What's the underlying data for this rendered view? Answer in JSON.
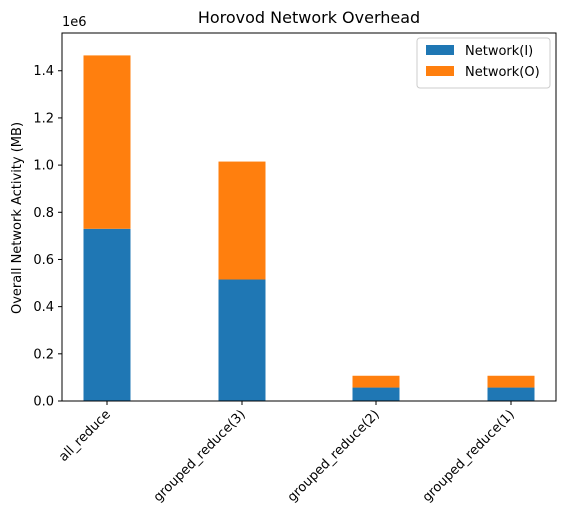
{
  "chart_data": {
    "type": "bar",
    "stacked": true,
    "title": "Horovod Network Overhead",
    "xlabel": "",
    "ylabel": "Overall Network Activity (MB)",
    "y_scale_label": "1e6",
    "categories": [
      "all_reduce",
      "grouped_reduce(3)",
      "grouped_reduce(2)",
      "grouped_reduce(1)"
    ],
    "series": [
      {
        "name": "Network(I)",
        "color": "#1f77b4",
        "values": [
          730000,
          515000,
          57000,
          57000
        ]
      },
      {
        "name": "Network(O)",
        "color": "#ff7f0e",
        "values": [
          735000,
          500000,
          50000,
          50000
        ]
      }
    ],
    "ylim": [
      0,
      1560000
    ],
    "yticks": [
      0,
      200000,
      400000,
      600000,
      800000,
      1000000,
      1200000,
      1400000
    ],
    "ytick_labels": [
      "0.0",
      "0.2",
      "0.4",
      "0.6",
      "0.8",
      "1.0",
      "1.2",
      "1.4"
    ],
    "grid": false,
    "legend_position": "top-right"
  }
}
